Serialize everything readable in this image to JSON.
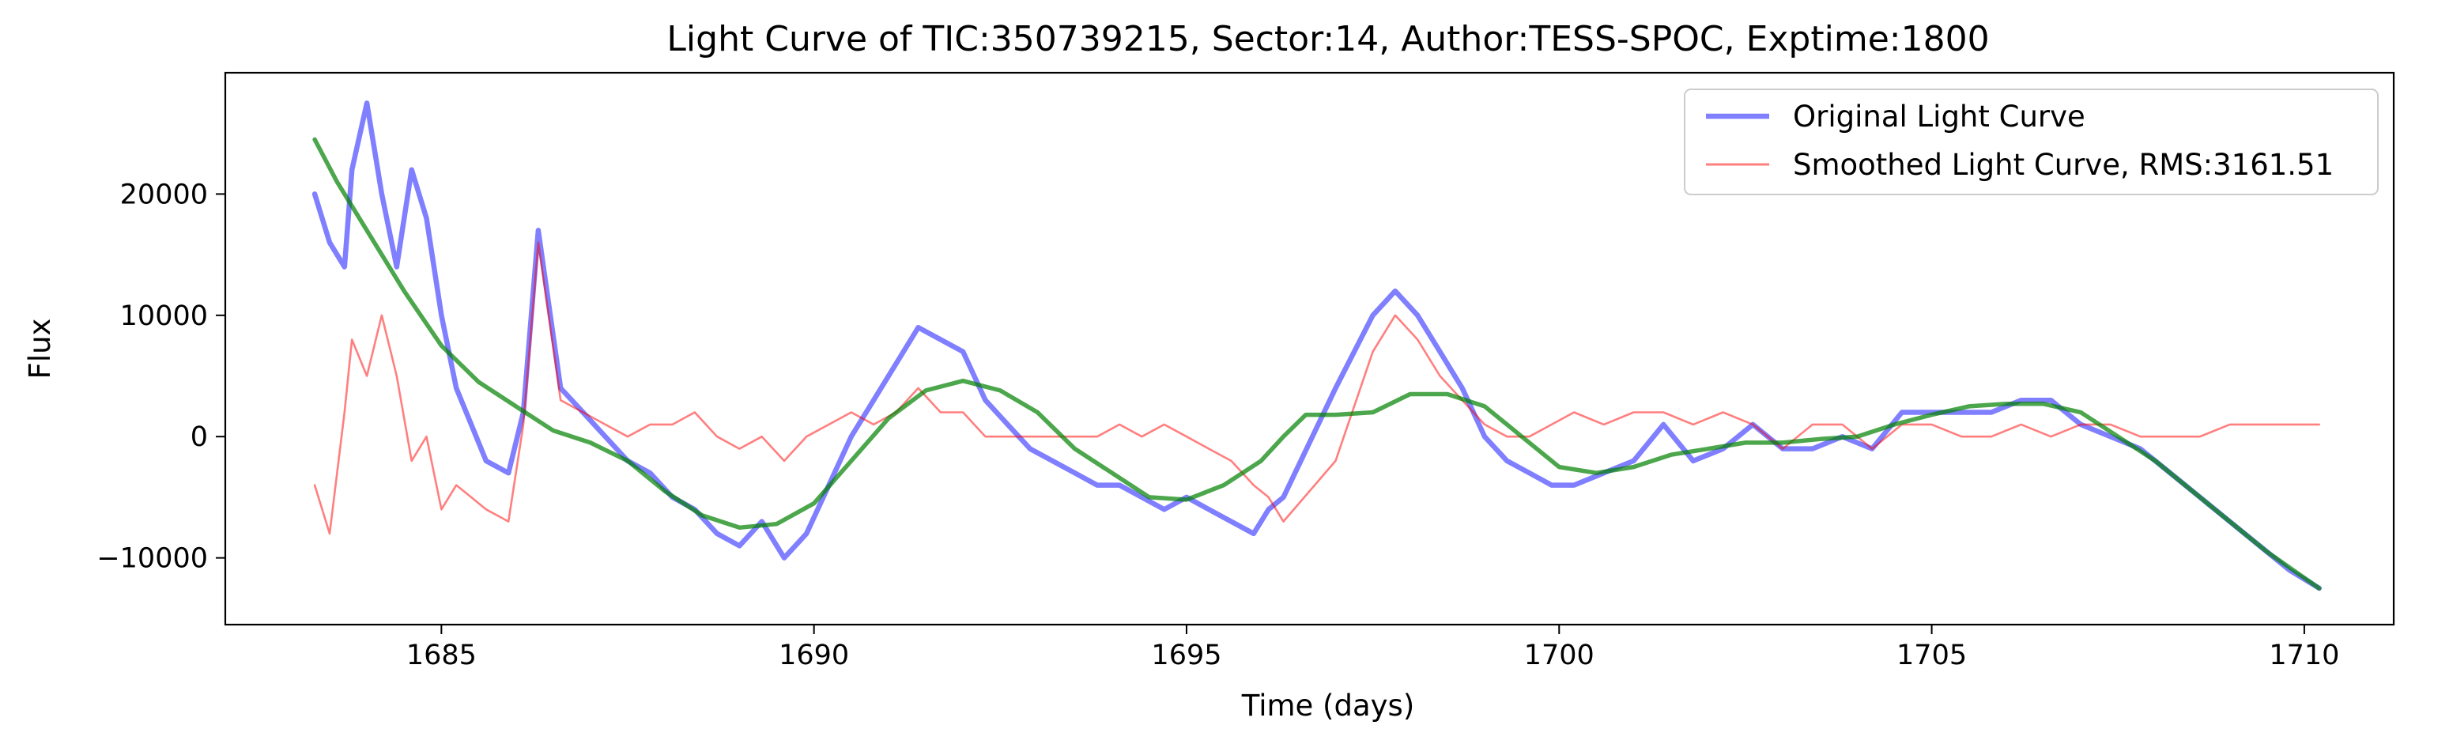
{
  "chart_data": {
    "type": "line",
    "title": "Light Curve of TIC:350739215, Sector:14, Author:TESS-SPOC, Exptime:1800",
    "xlabel": "Time (days)",
    "ylabel": "Flux",
    "xlim": [
      1682.1,
      1711.2
    ],
    "ylim": [
      -15500,
      30000
    ],
    "xticks": [
      1685,
      1690,
      1695,
      1700,
      1705,
      1710
    ],
    "xtick_labels": [
      "1685",
      "1690",
      "1695",
      "1700",
      "1705",
      "1710"
    ],
    "yticks": [
      -10000,
      0,
      10000,
      20000
    ],
    "ytick_labels": [
      "−10000",
      "0",
      "10000",
      "20000"
    ],
    "grid": false,
    "legend_position": "top-right",
    "series": [
      {
        "name": "Original Light Curve",
        "color": "#0000ff",
        "x": [
          1683.3,
          1683.5,
          1683.7,
          1683.8,
          1684.0,
          1684.2,
          1684.4,
          1684.6,
          1684.8,
          1685.0,
          1685.2,
          1685.4,
          1685.6,
          1685.9,
          1686.1,
          1686.3,
          1686.6,
          1686.9,
          1687.2,
          1687.5,
          1687.8,
          1688.1,
          1688.4,
          1688.7,
          1689.0,
          1689.3,
          1689.6,
          1689.9,
          1690.2,
          1690.5,
          1690.8,
          1691.1,
          1691.4,
          1691.7,
          1692.0,
          1692.3,
          1692.6,
          1692.9,
          1693.2,
          1693.5,
          1693.8,
          1694.1,
          1694.4,
          1694.7,
          1695.0,
          1695.3,
          1695.6,
          1695.9,
          1696.1,
          1696.3,
          1697.0,
          1697.5,
          1697.8,
          1698.1,
          1698.4,
          1698.7,
          1699.0,
          1699.3,
          1699.6,
          1699.9,
          1700.2,
          1700.6,
          1701.0,
          1701.4,
          1701.8,
          1702.2,
          1702.6,
          1703.0,
          1703.4,
          1703.8,
          1704.2,
          1704.6,
          1705.0,
          1705.4,
          1705.8,
          1706.2,
          1706.6,
          1707.0,
          1707.4,
          1707.8,
          1708.2,
          1708.6,
          1709.0,
          1709.4,
          1709.8,
          1710.2
        ],
        "values": [
          20000,
          16000,
          14000,
          22000,
          27500,
          20000,
          14000,
          22000,
          18000,
          10000,
          4000,
          1000,
          -2000,
          -3000,
          2000,
          17000,
          4000,
          2000,
          0,
          -2000,
          -3000,
          -5000,
          -6000,
          -8000,
          -9000,
          -7000,
          -10000,
          -8000,
          -4000,
          0,
          3000,
          6000,
          9000,
          8000,
          7000,
          3000,
          1000,
          -1000,
          -2000,
          -3000,
          -4000,
          -4000,
          -5000,
          -6000,
          -5000,
          -6000,
          -7000,
          -8000,
          -6000,
          -5000,
          4000,
          10000,
          12000,
          10000,
          7000,
          4000,
          0,
          -2000,
          -3000,
          -4000,
          -4000,
          -3000,
          -2000,
          1000,
          -2000,
          -1000,
          1000,
          -1000,
          -1000,
          0,
          -1000,
          2000,
          2000,
          2000,
          2000,
          3000,
          3000,
          1000,
          0,
          -1000,
          -3000,
          -5000,
          -7000,
          -9000,
          -11000,
          -12500
        ]
      },
      {
        "name": "Smoothed Light Curve, RMS:3161.51",
        "color": "#ff0000",
        "x": [
          1683.3,
          1683.5,
          1683.7,
          1683.8,
          1684.0,
          1684.2,
          1684.4,
          1684.6,
          1684.8,
          1685.0,
          1685.2,
          1685.4,
          1685.6,
          1685.9,
          1686.1,
          1686.3,
          1686.6,
          1686.9,
          1687.2,
          1687.5,
          1687.8,
          1688.1,
          1688.4,
          1688.7,
          1689.0,
          1689.3,
          1689.6,
          1689.9,
          1690.2,
          1690.5,
          1690.8,
          1691.1,
          1691.4,
          1691.7,
          1692.0,
          1692.3,
          1692.6,
          1692.9,
          1693.2,
          1693.5,
          1693.8,
          1694.1,
          1694.4,
          1694.7,
          1695.0,
          1695.3,
          1695.6,
          1695.9,
          1696.1,
          1696.3,
          1697.0,
          1697.5,
          1697.8,
          1698.1,
          1698.4,
          1698.7,
          1699.0,
          1699.3,
          1699.6,
          1699.9,
          1700.2,
          1700.6,
          1701.0,
          1701.4,
          1701.8,
          1702.2,
          1702.6,
          1703.0,
          1703.4,
          1703.8,
          1704.2,
          1704.6,
          1705.0,
          1705.4,
          1705.8,
          1706.2,
          1706.6,
          1707.0,
          1707.4,
          1707.8,
          1708.2,
          1708.6,
          1709.0,
          1709.4,
          1709.8,
          1710.2
        ],
        "values": [
          -4000,
          -8000,
          2000,
          8000,
          5000,
          10000,
          5000,
          -2000,
          0,
          -6000,
          -4000,
          -5000,
          -6000,
          -7000,
          1000,
          16000,
          3000,
          2000,
          1000,
          0,
          1000,
          1000,
          2000,
          0,
          -1000,
          0,
          -2000,
          0,
          1000,
          2000,
          1000,
          2000,
          4000,
          2000,
          2000,
          0,
          0,
          0,
          0,
          0,
          0,
          1000,
          0,
          1000,
          0,
          -1000,
          -2000,
          -4000,
          -5000,
          -7000,
          -2000,
          7000,
          10000,
          8000,
          5000,
          3000,
          1000,
          0,
          0,
          1000,
          2000,
          1000,
          2000,
          2000,
          1000,
          2000,
          1000,
          -1000,
          1000,
          1000,
          -1000,
          1000,
          1000,
          0,
          0,
          1000,
          0,
          1000,
          1000,
          0,
          0,
          0,
          1000,
          1000,
          1000,
          1000
        ]
      },
      {
        "name": "",
        "color": "#008000",
        "x": [
          1683.3,
          1683.6,
          1684.0,
          1684.5,
          1685.0,
          1685.5,
          1686.0,
          1686.5,
          1687.0,
          1687.5,
          1688.0,
          1688.5,
          1689.0,
          1689.5,
          1690.0,
          1690.5,
          1691.0,
          1691.5,
          1692.0,
          1692.5,
          1693.0,
          1693.5,
          1694.0,
          1694.5,
          1695.0,
          1695.5,
          1696.0,
          1696.3,
          1696.6,
          1697.0,
          1697.5,
          1698.0,
          1698.5,
          1699.0,
          1699.5,
          1700.0,
          1700.5,
          1701.0,
          1701.5,
          1702.0,
          1702.5,
          1703.0,
          1703.5,
          1704.0,
          1704.5,
          1705.0,
          1705.5,
          1706.0,
          1706.5,
          1707.0,
          1707.5,
          1708.0,
          1708.5,
          1709.0,
          1709.5,
          1710.2
        ],
        "values": [
          24500,
          21000,
          17000,
          12000,
          7500,
          4500,
          2500,
          500,
          -500,
          -2000,
          -4500,
          -6500,
          -7500,
          -7200,
          -5500,
          -2000,
          1500,
          3800,
          4600,
          3800,
          2000,
          -1000,
          -3000,
          -5000,
          -5200,
          -4000,
          -2000,
          0,
          1800,
          1800,
          2000,
          3500,
          3500,
          2500,
          0,
          -2500,
          -3000,
          -2500,
          -1500,
          -1000,
          -500,
          -500,
          -200,
          0,
          1000,
          1800,
          2500,
          2700,
          2700,
          2000,
          0,
          -2000,
          -4500,
          -7000,
          -9500,
          -12500
        ]
      }
    ]
  }
}
